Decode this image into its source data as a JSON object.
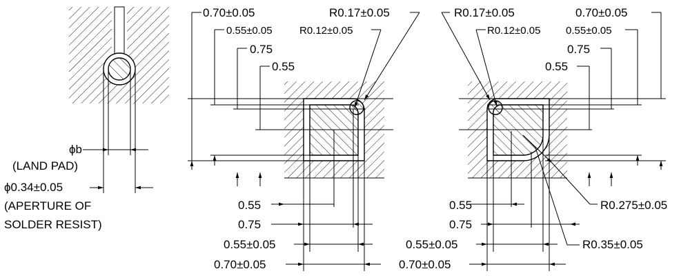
{
  "left_view": {
    "phi_b_label": "ϕb",
    "land_pad_label": "(LAND PAD)",
    "aperture_dim": "ϕ0.34±0.05",
    "aperture_note_line1": "(APERTURE OF",
    "aperture_note_line2": "SOLDER RESIST)"
  },
  "middle_view": {
    "top_070": "0.70±0.05",
    "top_055": "0.55±0.05",
    "top_075": "0.75",
    "top_055b": "0.55",
    "r017": "R0.17±0.05",
    "r012": "R0.12±0.05",
    "bot_055": "0.55",
    "bot_075": "0.75",
    "bot_055tol": "0.55±0.05",
    "bot_070tol": "0.70±0.05"
  },
  "right_view": {
    "r017": "R0.17±0.05",
    "r012": "R0.12±0.05",
    "top_070": "0.70±0.05",
    "top_055": "0.55±0.05",
    "top_075": "0.75",
    "top_055b": "0.55",
    "bot_055": "0.55",
    "bot_075": "0.75",
    "bot_055tol": "0.55±0.05",
    "bot_070tol": "0.70±0.05",
    "r0275": "R0.275±0.05",
    "r035": "R0.35±0.05"
  }
}
